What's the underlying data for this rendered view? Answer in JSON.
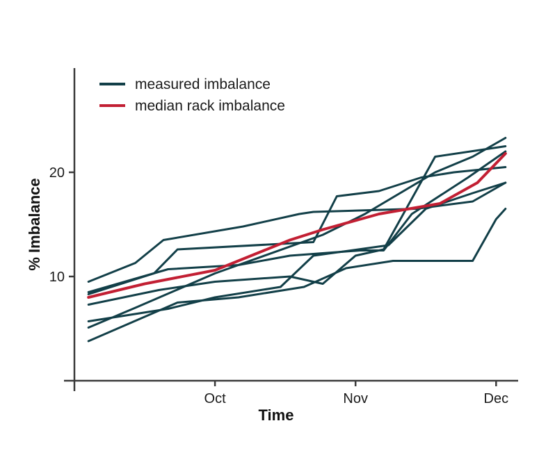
{
  "chart_data": {
    "type": "line",
    "title": "",
    "xlabel": "Time",
    "ylabel": "% Imbalance",
    "x_ticks": [
      "Oct",
      "Nov",
      "Dec"
    ],
    "x_tick_positions": [
      3.0,
      6.0,
      9.0
    ],
    "y_ticks": [
      "10",
      "20"
    ],
    "y_tick_values": [
      10,
      20
    ],
    "xlim": [
      0,
      9.5
    ],
    "ylim": [
      0,
      30
    ],
    "grid": false,
    "legend": "top-left",
    "colors": {
      "measured": "#123f48",
      "median": "#c21f33"
    },
    "series": [
      {
        "name": "measured imbalance",
        "kind": "measured",
        "points": [
          [
            0.3,
            9.5
          ],
          [
            1.3,
            11.3
          ],
          [
            1.9,
            13.5
          ],
          [
            3.6,
            14.8
          ],
          [
            4.8,
            16.0
          ],
          [
            5.1,
            16.2
          ],
          [
            7.3,
            16.5
          ],
          [
            8.5,
            17.2
          ],
          [
            9.2,
            19.0
          ]
        ]
      },
      {
        "kind": "measured",
        "points": [
          [
            0.3,
            8.3
          ],
          [
            1.7,
            10.3
          ],
          [
            2.2,
            12.6
          ],
          [
            5.1,
            13.3
          ],
          [
            5.6,
            17.7
          ],
          [
            6.5,
            18.2
          ],
          [
            7.4,
            19.5
          ],
          [
            8.1,
            20.0
          ],
          [
            9.2,
            20.5
          ]
        ]
      },
      {
        "kind": "measured",
        "points": [
          [
            0.3,
            8.5
          ],
          [
            2.0,
            10.7
          ],
          [
            3.5,
            11.1
          ],
          [
            4.6,
            12.0
          ],
          [
            6.1,
            12.5
          ],
          [
            6.6,
            12.5
          ],
          [
            7.2,
            16.0
          ],
          [
            8.4,
            19.5
          ],
          [
            9.2,
            22.0
          ]
        ]
      },
      {
        "kind": "measured",
        "points": [
          [
            0.3,
            5.7
          ],
          [
            2.0,
            6.9
          ],
          [
            3.0,
            8.0
          ],
          [
            4.4,
            9.0
          ],
          [
            5.1,
            12.0
          ],
          [
            6.7,
            13.0
          ],
          [
            7.5,
            16.5
          ],
          [
            8.5,
            18.0
          ],
          [
            9.2,
            19.0
          ]
        ]
      },
      {
        "kind": "measured",
        "points": [
          [
            0.3,
            7.3
          ],
          [
            1.8,
            8.7
          ],
          [
            3.0,
            9.5
          ],
          [
            4.6,
            10.0
          ],
          [
            5.3,
            9.3
          ],
          [
            6.0,
            12.0
          ],
          [
            6.6,
            12.6
          ],
          [
            7.7,
            21.5
          ],
          [
            9.2,
            22.5
          ]
        ]
      },
      {
        "kind": "measured",
        "points": [
          [
            0.3,
            5.1
          ],
          [
            1.3,
            7.0
          ],
          [
            3.0,
            10.3
          ],
          [
            5.3,
            14.0
          ],
          [
            6.2,
            16.0
          ],
          [
            7.7,
            20.0
          ],
          [
            8.5,
            21.5
          ],
          [
            9.2,
            23.3
          ]
        ]
      },
      {
        "kind": "measured",
        "points": [
          [
            0.3,
            3.8
          ],
          [
            2.2,
            7.5
          ],
          [
            3.5,
            8.0
          ],
          [
            4.9,
            9.0
          ],
          [
            5.8,
            10.8
          ],
          [
            6.8,
            11.5
          ],
          [
            7.8,
            11.5
          ],
          [
            8.5,
            11.5
          ],
          [
            9.0,
            15.5
          ],
          [
            9.2,
            16.5
          ]
        ]
      },
      {
        "name": "median rack imbalance",
        "kind": "median",
        "points": [
          [
            0.3,
            8.0
          ],
          [
            1.5,
            9.3
          ],
          [
            3.0,
            10.6
          ],
          [
            4.6,
            13.5
          ],
          [
            5.3,
            14.5
          ],
          [
            6.5,
            16.0
          ],
          [
            7.8,
            17.0
          ],
          [
            8.6,
            19.0
          ],
          [
            9.2,
            21.8
          ]
        ]
      }
    ]
  }
}
